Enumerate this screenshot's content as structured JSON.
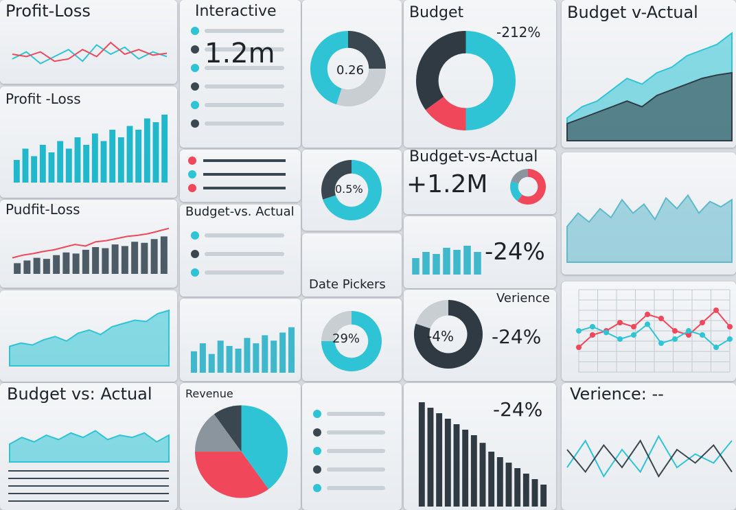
{
  "panels": [
    {
      "title": "Profit-Loss",
      "chart": {
        "ylim": [
          0,
          100
        ],
        "series": [
          {
            "type": "line",
            "color": "#2ec4d6",
            "values": [
              40,
              55,
              30,
              45,
              60,
              35,
              70,
              50,
              65,
              40,
              55,
              45
            ]
          },
          {
            "type": "line",
            "color": "#f0475a",
            "values": [
              50,
              45,
              55,
              35,
              40,
              60,
              45,
              75,
              50,
              60,
              48,
              52
            ]
          }
        ]
      }
    },
    {
      "title": "Profit -Loss",
      "chart": {
        "ylim": [
          0,
          100
        ],
        "series": [
          {
            "type": "bar",
            "color": "#22b8cc",
            "values": [
              30,
              45,
              35,
              50,
              40,
              55,
              45,
              60,
              50,
              65,
              55,
              70,
              60,
              75,
              70,
              85,
              80,
              90
            ]
          }
        ]
      }
    },
    {
      "title": "Pudfit-Loss",
      "chart": {
        "ylim": [
          0,
          100
        ],
        "series": [
          {
            "type": "bar",
            "color": "#4d5b66",
            "values": [
              20,
              25,
              30,
              28,
              35,
              40,
              38,
              45,
              50,
              48,
              55,
              52,
              60,
              58,
              65,
              70
            ]
          },
          {
            "type": "line",
            "color": "#f0475a",
            "values": [
              30,
              35,
              38,
              42,
              45,
              50,
              55,
              52,
              60,
              62,
              66,
              70,
              72,
              75,
              80,
              85
            ]
          }
        ]
      }
    },
    {
      "chart": {
        "ylim": [
          0,
          100
        ],
        "series": [
          {
            "type": "area",
            "color": "#2ec4d6",
            "values": [
              30,
              35,
              32,
              40,
              45,
              38,
              50,
              55,
              48,
              60,
              65,
              70,
              68,
              80,
              85
            ]
          }
        ]
      }
    },
    {
      "title": "Budget vs: Actual",
      "chart": {
        "ylim": [
          0,
          100
        ],
        "series": [
          {
            "type": "area",
            "color": "#2ec4d6",
            "values": [
              40,
              55,
              45,
              60,
              50,
              65,
              55,
              70,
              50,
              60,
              55,
              65,
              45,
              60
            ]
          }
        ]
      }
    },
    {
      "title": "Interactive",
      "texts": [
        "1.2m"
      ]
    },
    {
      "texts": [
        "0.26"
      ],
      "chart": {
        "type": "donut",
        "values": [
          25,
          30,
          45
        ],
        "colors": [
          "#3b4750",
          "#c9ced3",
          "#2ec4d6"
        ]
      }
    },
    {},
    {
      "texts": [
        "0.5%"
      ],
      "chart": {
        "type": "donut",
        "values": [
          70,
          30
        ],
        "colors": [
          "#2ec4d6",
          "#3b4750"
        ]
      }
    },
    {
      "title": "Budget-vs. Actual"
    },
    {
      "texts": [
        "Date Pickers"
      ]
    },
    {
      "chart": {
        "ylim": [
          0,
          100
        ],
        "series": [
          {
            "type": "bar",
            "color": "#3fb8cc",
            "values": [
              40,
              55,
              35,
              60,
              50,
              45,
              65,
              55,
              70,
              60,
              75,
              85
            ]
          }
        ]
      }
    },
    {
      "texts": [
        "29%"
      ],
      "chart": {
        "type": "donut",
        "values": [
          75,
          25
        ],
        "colors": [
          "#2ec4d6",
          "#c9ced3"
        ]
      }
    },
    {
      "title": "Revenue",
      "chart": {
        "type": "pie",
        "values": [
          40,
          35,
          15,
          10
        ],
        "colors": [
          "#2ec4d6",
          "#f0475a",
          "#8a959e",
          "#3b4750"
        ]
      }
    },
    {},
    {
      "title": "Budget",
      "texts": [
        "-212%"
      ],
      "chart": {
        "type": "donut",
        "values": [
          50,
          15,
          35
        ],
        "colors": [
          "#2ec4d6",
          "#f0475a",
          "#2f3a42"
        ]
      }
    },
    {
      "title": "Budget-vs-Actual",
      "texts": [
        "+1.2M"
      ],
      "chart": {
        "type": "donut",
        "values": [
          60,
          20,
          20
        ],
        "colors": [
          "#f0475a",
          "#2ec4d6",
          "#8a959e"
        ]
      }
    },
    {
      "texts": [
        "-24%"
      ],
      "chart": {
        "ylim": [
          0,
          100
        ],
        "series": [
          {
            "type": "bar",
            "color": "#3fb8cc",
            "values": [
              40,
              55,
              50,
              65,
              60,
              70,
              55
            ]
          }
        ]
      }
    },
    {
      "title": "Verience",
      "texts": [
        "-4%",
        "-24%"
      ],
      "chart": {
        "type": "donut",
        "values": [
          80,
          20
        ],
        "colors": [
          "#2f3a42",
          "#c9ced3"
        ]
      }
    },
    {
      "texts": [
        "-24%"
      ],
      "chart": {
        "ylim": [
          0,
          100
        ],
        "series": [
          {
            "type": "bar",
            "color": "#2f3a42",
            "values": [
              95,
              90,
              85,
              80,
              75,
              70,
              65,
              58,
              50,
              45,
              40,
              35,
              30,
              25,
              20
            ]
          }
        ]
      }
    },
    {
      "title": "Budget v-Actual",
      "chart": {
        "ylim": [
          0,
          100
        ],
        "series": [
          {
            "type": "area",
            "color": "#2ec4d6",
            "values": [
              20,
              30,
              35,
              45,
              55,
              50,
              60,
              65,
              75,
              80,
              85,
              95
            ]
          },
          {
            "type": "area",
            "color": "#2f3a42",
            "values": [
              15,
              20,
              25,
              30,
              35,
              30,
              40,
              45,
              50,
              55,
              58,
              60
            ]
          }
        ]
      }
    },
    {
      "chart": {
        "ylim": [
          0,
          100
        ],
        "series": [
          {
            "type": "area",
            "color": "#5fb9cc",
            "values": [
              40,
              55,
              45,
              60,
              50,
              70,
              55,
              65,
              48,
              72,
              60,
              75,
              55,
              68,
              62,
              70
            ]
          }
        ]
      }
    },
    {
      "chart": {
        "ylim": [
          0,
          100
        ],
        "series": [
          {
            "type": "line",
            "color": "#f0475a",
            "values": [
              30,
              45,
              50,
              60,
              55,
              70,
              65,
              50,
              45,
              60,
              75,
              55
            ]
          },
          {
            "type": "line",
            "color": "#2ec4d6",
            "values": [
              50,
              55,
              48,
              40,
              45,
              58,
              35,
              40,
              50,
              45,
              30,
              40
            ]
          }
        ]
      }
    },
    {
      "title": "Verience: --",
      "chart": {
        "ylim": [
          0,
          100
        ],
        "series": [
          {
            "type": "line",
            "color": "#2ec4d6",
            "values": [
              40,
              70,
              30,
              60,
              35,
              75,
              40,
              55,
              45,
              70
            ]
          },
          {
            "type": "line",
            "color": "#3b4750",
            "values": [
              60,
              35,
              65,
              40,
              70,
              30,
              60,
              45,
              65,
              35
            ]
          }
        ]
      }
    }
  ]
}
